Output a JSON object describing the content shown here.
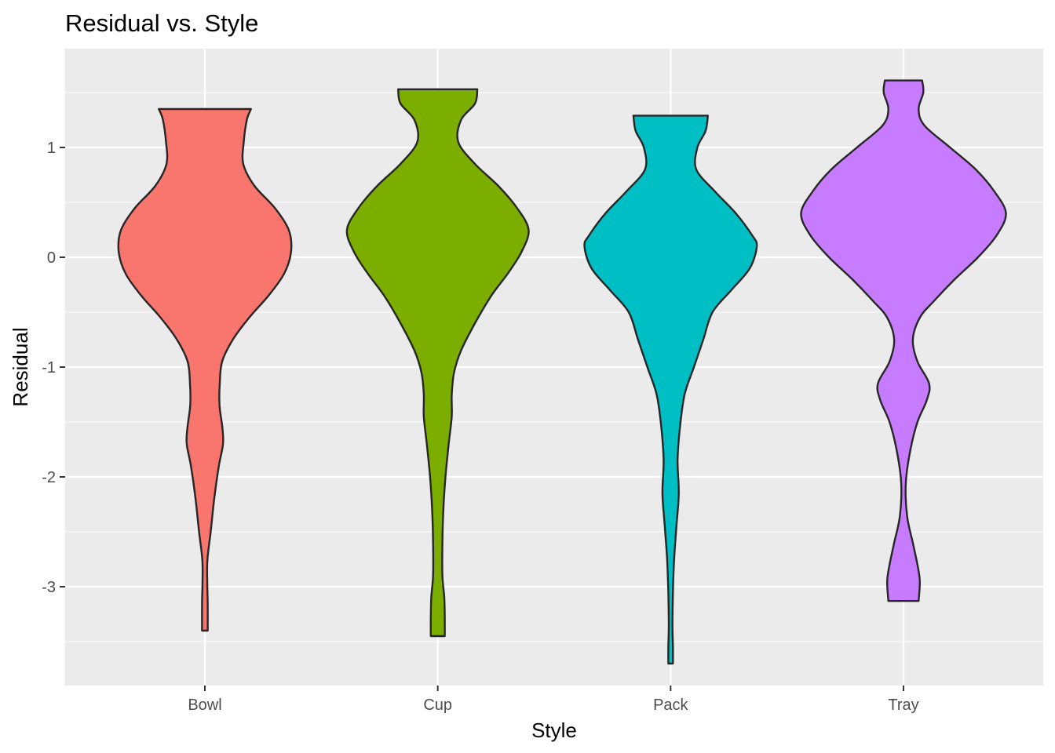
{
  "chart_data": {
    "type": "violin",
    "title": "Residual vs. Style",
    "xlabel": "Style",
    "ylabel": "Residual",
    "categories": [
      "Bowl",
      "Cup",
      "Pack",
      "Tray"
    ],
    "ylim": [
      -3.9,
      1.9
    ],
    "yticks": [
      -3,
      -2,
      -1,
      0,
      1
    ],
    "ytick_labels": [
      "-3",
      "-2",
      "-1",
      "0",
      "1"
    ],
    "grid": true,
    "legend": "none",
    "colors": [
      "#F8766D",
      "#7CAE00",
      "#00BFC4",
      "#C77CFF"
    ],
    "series": [
      {
        "category": "Bowl",
        "color": "#F8766D",
        "min": -3.4,
        "max": 1.35,
        "half_width_profile": [
          [
            1.35,
            0.198
          ],
          [
            1.25,
            0.18
          ],
          [
            1.05,
            0.167
          ],
          [
            0.85,
            0.165
          ],
          [
            0.65,
            0.213
          ],
          [
            0.45,
            0.3
          ],
          [
            0.25,
            0.36
          ],
          [
            0.05,
            0.37
          ],
          [
            -0.15,
            0.34
          ],
          [
            -0.35,
            0.273
          ],
          [
            -0.55,
            0.19
          ],
          [
            -0.75,
            0.12
          ],
          [
            -0.95,
            0.074
          ],
          [
            -1.15,
            0.064
          ],
          [
            -1.35,
            0.063
          ],
          [
            -1.55,
            0.075
          ],
          [
            -1.7,
            0.078
          ],
          [
            -1.9,
            0.06
          ],
          [
            -2.2,
            0.04
          ],
          [
            -2.5,
            0.025
          ],
          [
            -2.75,
            0.011
          ],
          [
            -2.95,
            0.01
          ],
          [
            -3.15,
            0.012
          ],
          [
            -3.4,
            0.012
          ]
        ]
      },
      {
        "category": "Cup",
        "color": "#7CAE00",
        "min": -3.45,
        "max": 1.53,
        "half_width_profile": [
          [
            1.53,
            0.17
          ],
          [
            1.4,
            0.16
          ],
          [
            1.25,
            0.1
          ],
          [
            1.05,
            0.088
          ],
          [
            0.85,
            0.16
          ],
          [
            0.65,
            0.26
          ],
          [
            0.45,
            0.34
          ],
          [
            0.25,
            0.39
          ],
          [
            0.05,
            0.36
          ],
          [
            -0.15,
            0.3
          ],
          [
            -0.35,
            0.23
          ],
          [
            -0.6,
            0.16
          ],
          [
            -0.85,
            0.1
          ],
          [
            -1.05,
            0.07
          ],
          [
            -1.25,
            0.06
          ],
          [
            -1.45,
            0.06
          ],
          [
            -1.7,
            0.047
          ],
          [
            -2.0,
            0.033
          ],
          [
            -2.3,
            0.024
          ],
          [
            -2.6,
            0.02
          ],
          [
            -2.9,
            0.02
          ],
          [
            -3.1,
            0.028
          ],
          [
            -3.3,
            0.03
          ],
          [
            -3.45,
            0.03
          ]
        ]
      },
      {
        "category": "Pack",
        "color": "#00BFC4",
        "min": -3.7,
        "max": 1.29,
        "half_width_profile": [
          [
            1.29,
            0.16
          ],
          [
            1.15,
            0.15
          ],
          [
            1.0,
            0.115
          ],
          [
            0.8,
            0.11
          ],
          [
            0.6,
            0.19
          ],
          [
            0.4,
            0.28
          ],
          [
            0.2,
            0.35
          ],
          [
            0.1,
            0.37
          ],
          [
            -0.1,
            0.34
          ],
          [
            -0.3,
            0.26
          ],
          [
            -0.5,
            0.18
          ],
          [
            -0.75,
            0.14
          ],
          [
            -1.0,
            0.1
          ],
          [
            -1.25,
            0.06
          ],
          [
            -1.55,
            0.04
          ],
          [
            -1.85,
            0.03
          ],
          [
            -2.15,
            0.035
          ],
          [
            -2.45,
            0.025
          ],
          [
            -2.75,
            0.015
          ],
          [
            -3.05,
            0.01
          ],
          [
            -3.35,
            0.008
          ],
          [
            -3.55,
            0.01
          ],
          [
            -3.7,
            0.01
          ]
        ]
      },
      {
        "category": "Tray",
        "color": "#C77CFF",
        "min": -3.13,
        "max": 1.61,
        "half_width_profile": [
          [
            1.61,
            0.08
          ],
          [
            1.5,
            0.085
          ],
          [
            1.35,
            0.065
          ],
          [
            1.2,
            0.09
          ],
          [
            1.0,
            0.2
          ],
          [
            0.8,
            0.31
          ],
          [
            0.6,
            0.39
          ],
          [
            0.4,
            0.44
          ],
          [
            0.2,
            0.4
          ],
          [
            0.0,
            0.32
          ],
          [
            -0.2,
            0.22
          ],
          [
            -0.4,
            0.13
          ],
          [
            -0.55,
            0.07
          ],
          [
            -0.75,
            0.04
          ],
          [
            -0.95,
            0.06
          ],
          [
            -1.15,
            0.11
          ],
          [
            -1.3,
            0.1
          ],
          [
            -1.5,
            0.06
          ],
          [
            -1.75,
            0.03
          ],
          [
            -2.05,
            0.01
          ],
          [
            -2.35,
            0.015
          ],
          [
            -2.6,
            0.04
          ],
          [
            -2.8,
            0.06
          ],
          [
            -2.95,
            0.07
          ],
          [
            -3.13,
            0.065
          ]
        ]
      }
    ]
  }
}
